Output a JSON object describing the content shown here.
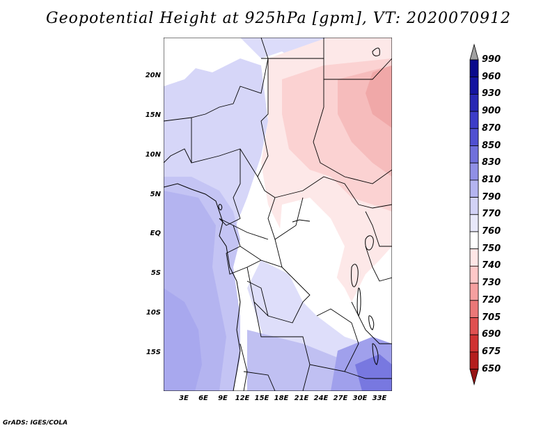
{
  "title": "Geopotential Height at 925hPa [gpm], VT: 2020070912",
  "footer": "GrADS: IGES/COLA",
  "map": {
    "variable": "Geopotential Height",
    "level": "925hPa",
    "units": "gpm",
    "valid_time": "2020070912",
    "lat_labels": [
      "20N",
      "15N",
      "10N",
      "5N",
      "EQ",
      "5S",
      "10S",
      "15S"
    ],
    "lon_labels": [
      "3E",
      "6E",
      "9E",
      "12E",
      "15E",
      "18E",
      "21E",
      "24E",
      "27E",
      "30E",
      "33E"
    ]
  },
  "colorbar": {
    "levels": [
      "990",
      "960",
      "930",
      "900",
      "870",
      "850",
      "830",
      "810",
      "790",
      "770",
      "760",
      "750",
      "740",
      "730",
      "720",
      "705",
      "690",
      "675",
      "650"
    ],
    "colors": [
      "#a0a0a0",
      "#0a0a8c",
      "#1414a0",
      "#2828b4",
      "#3c3cc8",
      "#5050d2",
      "#7070dc",
      "#9090e6",
      "#b4b4f0",
      "#d2d2f6",
      "#e8e8fa",
      "#ffffff",
      "#ffe6e6",
      "#ffc8c8",
      "#f5a0a0",
      "#eb7878",
      "#e05050",
      "#d03232",
      "#b41e1e",
      "#961414"
    ]
  }
}
